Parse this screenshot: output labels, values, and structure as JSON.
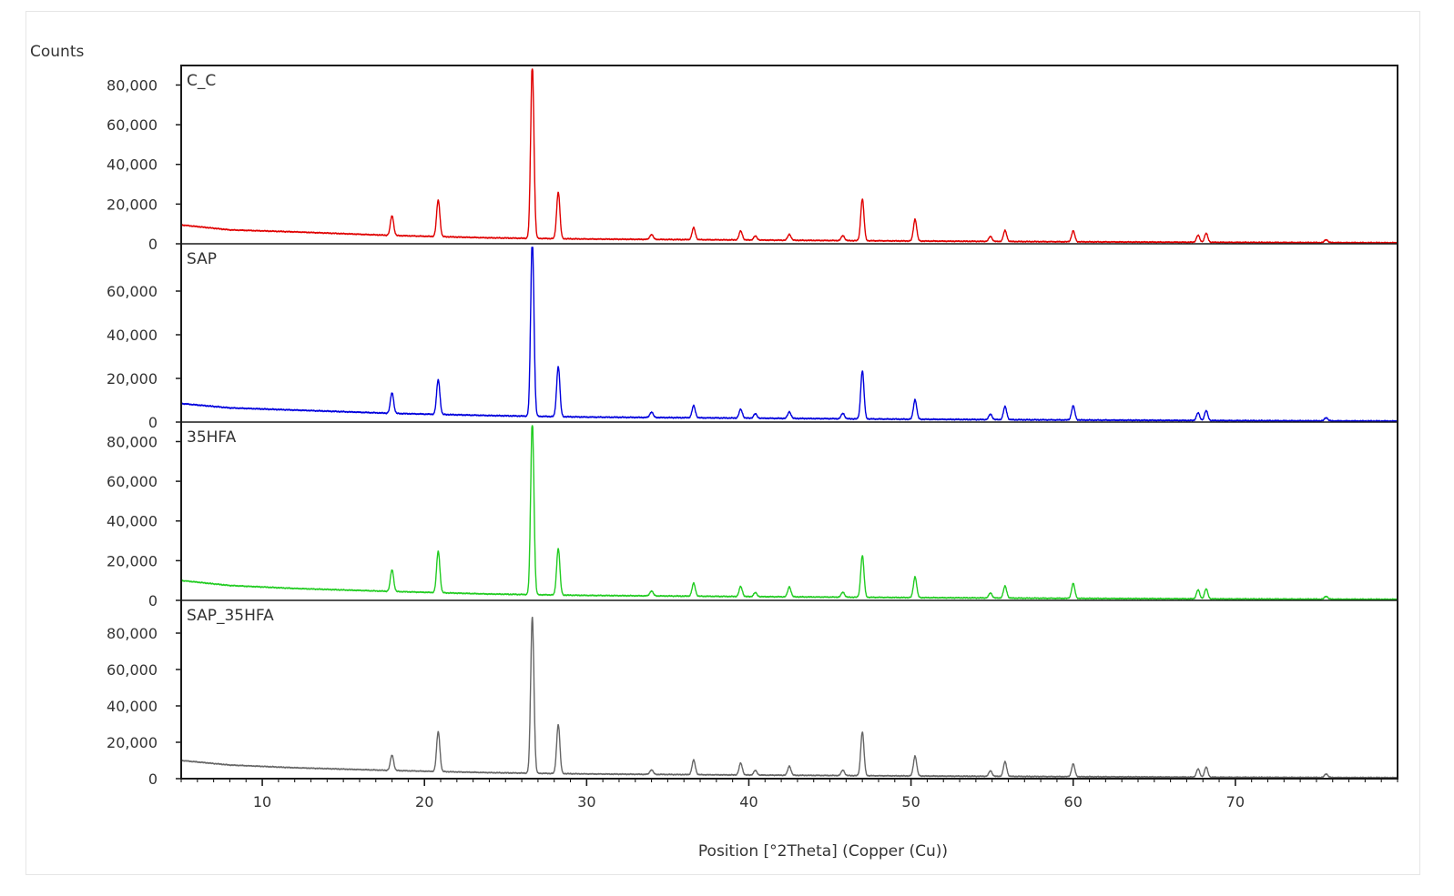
{
  "chart_data": {
    "type": "line",
    "ylabel": "Counts",
    "xlabel": "Position [°2Theta] (Copper (Cu))",
    "xlim": [
      5,
      80
    ],
    "x_ticks": [
      10,
      20,
      30,
      40,
      50,
      60,
      70
    ],
    "x_tick_labels": [
      "10",
      "20",
      "30",
      "40",
      "50",
      "60",
      "70"
    ],
    "grid": false,
    "panels": [
      {
        "name": "C_C",
        "color": "#e00000",
        "ylim": [
          0,
          88000
        ],
        "y_ticks": [
          0,
          20000,
          40000,
          60000,
          80000
        ],
        "y_tick_labels": [
          "0",
          "20,000",
          "40,000",
          "60,000",
          "80,000"
        ],
        "baseline": [
          [
            5,
            9500
          ],
          [
            8,
            7000
          ],
          [
            12,
            6000
          ],
          [
            18,
            4200
          ],
          [
            24,
            3000
          ],
          [
            30,
            2400
          ],
          [
            40,
            1900
          ],
          [
            50,
            1400
          ],
          [
            60,
            1000
          ],
          [
            70,
            700
          ],
          [
            80,
            500
          ]
        ],
        "peaks": [
          [
            18.0,
            10000
          ],
          [
            20.85,
            18500
          ],
          [
            26.65,
            88000
          ],
          [
            28.25,
            23500
          ],
          [
            34.0,
            2500
          ],
          [
            36.6,
            6000
          ],
          [
            39.5,
            4500
          ],
          [
            40.4,
            2000
          ],
          [
            42.5,
            3000
          ],
          [
            45.8,
            2500
          ],
          [
            47.0,
            21000
          ],
          [
            50.25,
            11000
          ],
          [
            54.9,
            2500
          ],
          [
            55.8,
            5500
          ],
          [
            60.0,
            5500
          ],
          [
            67.7,
            3500
          ],
          [
            68.2,
            4500
          ],
          [
            75.6,
            1500
          ]
        ]
      },
      {
        "name": "SAP",
        "color": "#0000dd",
        "ylim": [
          0,
          80000
        ],
        "y_ticks": [
          0,
          20000,
          40000,
          60000
        ],
        "y_tick_labels": [
          "0",
          "20,000",
          "40,000",
          "60,000"
        ],
        "baseline": [
          [
            5,
            8500
          ],
          [
            8,
            6500
          ],
          [
            12,
            5500
          ],
          [
            18,
            4000
          ],
          [
            24,
            3000
          ],
          [
            30,
            2300
          ],
          [
            40,
            1800
          ],
          [
            50,
            1300
          ],
          [
            60,
            950
          ],
          [
            70,
            650
          ],
          [
            80,
            450
          ]
        ],
        "peaks": [
          [
            18.0,
            9500
          ],
          [
            20.85,
            16000
          ],
          [
            26.65,
            82000
          ],
          [
            28.25,
            23000
          ],
          [
            34.0,
            2500
          ],
          [
            36.6,
            5500
          ],
          [
            39.5,
            4000
          ],
          [
            40.4,
            2000
          ],
          [
            42.5,
            3000
          ],
          [
            45.8,
            2500
          ],
          [
            47.0,
            22000
          ],
          [
            50.25,
            9000
          ],
          [
            54.9,
            2500
          ],
          [
            55.8,
            6000
          ],
          [
            60.0,
            6500
          ],
          [
            67.7,
            3500
          ],
          [
            68.2,
            4500
          ],
          [
            75.6,
            1500
          ]
        ]
      },
      {
        "name": "35HFA",
        "color": "#22cc22",
        "ylim": [
          0,
          88000
        ],
        "y_ticks": [
          0,
          20000,
          40000,
          60000,
          80000
        ],
        "y_tick_labels": [
          "0",
          "20,000",
          "40,000",
          "60,000",
          "80,000"
        ],
        "baseline": [
          [
            5,
            10000
          ],
          [
            8,
            7500
          ],
          [
            12,
            6000
          ],
          [
            18,
            4500
          ],
          [
            24,
            3200
          ],
          [
            30,
            2500
          ],
          [
            40,
            1900
          ],
          [
            50,
            1400
          ],
          [
            60,
            1000
          ],
          [
            70,
            700
          ],
          [
            80,
            500
          ]
        ],
        "peaks": [
          [
            18.0,
            11000
          ],
          [
            20.85,
            21000
          ],
          [
            26.65,
            88000
          ],
          [
            28.25,
            23500
          ],
          [
            34.0,
            2500
          ],
          [
            36.6,
            6500
          ],
          [
            39.5,
            5000
          ],
          [
            40.4,
            2000
          ],
          [
            42.5,
            5000
          ],
          [
            45.8,
            2500
          ],
          [
            47.0,
            21000
          ],
          [
            50.25,
            10500
          ],
          [
            54.9,
            2500
          ],
          [
            55.8,
            6000
          ],
          [
            60.0,
            7500
          ],
          [
            67.7,
            4500
          ],
          [
            68.2,
            5000
          ],
          [
            75.6,
            1500
          ]
        ]
      },
      {
        "name": "SAP_35HFA",
        "color": "#666666",
        "ylim": [
          0,
          96000
        ],
        "y_ticks": [
          0,
          20000,
          40000,
          60000,
          80000
        ],
        "y_tick_labels": [
          "0",
          "20,000",
          "40,000",
          "60,000",
          "80,000"
        ],
        "baseline": [
          [
            5,
            10000
          ],
          [
            8,
            7500
          ],
          [
            12,
            6000
          ],
          [
            18,
            4500
          ],
          [
            24,
            3300
          ],
          [
            30,
            2600
          ],
          [
            40,
            2000
          ],
          [
            50,
            1500
          ],
          [
            60,
            1100
          ],
          [
            70,
            750
          ],
          [
            80,
            550
          ]
        ],
        "peaks": [
          [
            18.0,
            8500
          ],
          [
            20.85,
            22000
          ],
          [
            26.65,
            86000
          ],
          [
            28.25,
            27000
          ],
          [
            34.0,
            2500
          ],
          [
            36.6,
            8000
          ],
          [
            39.5,
            6500
          ],
          [
            40.4,
            2500
          ],
          [
            42.5,
            5000
          ],
          [
            45.8,
            3000
          ],
          [
            47.0,
            24000
          ],
          [
            50.25,
            11000
          ],
          [
            54.9,
            3000
          ],
          [
            55.8,
            8000
          ],
          [
            60.0,
            7000
          ],
          [
            67.7,
            4500
          ],
          [
            68.2,
            5500
          ],
          [
            75.6,
            2000
          ]
        ]
      }
    ]
  }
}
